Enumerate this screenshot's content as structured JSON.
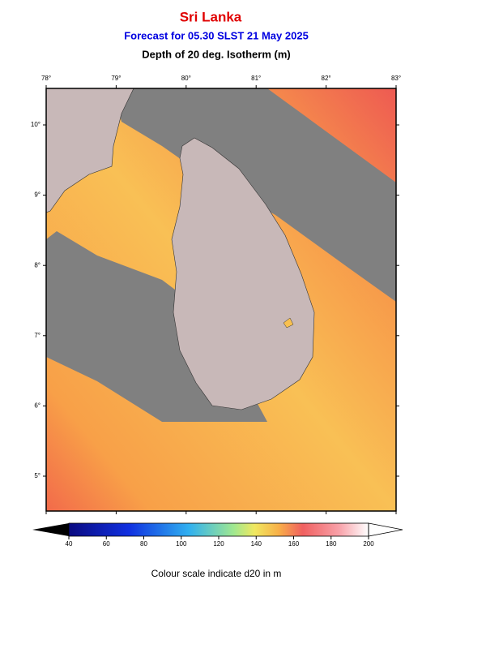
{
  "header": {
    "title": "Sri Lanka",
    "subtitle": "Forecast for  05.30 SLST 21 May 2025",
    "variable": "Depth of 20 deg. Isotherm (m)"
  },
  "map": {
    "lon_ticks": [
      {
        "value": 78,
        "label": "78°"
      },
      {
        "value": 79,
        "label": "79°"
      },
      {
        "value": 80,
        "label": "80°"
      },
      {
        "value": 81,
        "label": "81°"
      },
      {
        "value": 82,
        "label": "82°"
      },
      {
        "value": 83,
        "label": "83°"
      }
    ],
    "lat_ticks": [
      {
        "value": 10,
        "label": "10°"
      },
      {
        "value": 9,
        "label": "9°"
      },
      {
        "value": 8,
        "label": "8°"
      },
      {
        "value": 7,
        "label": "7°"
      },
      {
        "value": 6,
        "label": "6°"
      },
      {
        "value": 5,
        "label": "5°"
      }
    ]
  },
  "colorbar": {
    "ticks": [
      40,
      60,
      80,
      100,
      120,
      140,
      160,
      180,
      200
    ],
    "caption": "Colour scale indicate d20 in m"
  }
}
